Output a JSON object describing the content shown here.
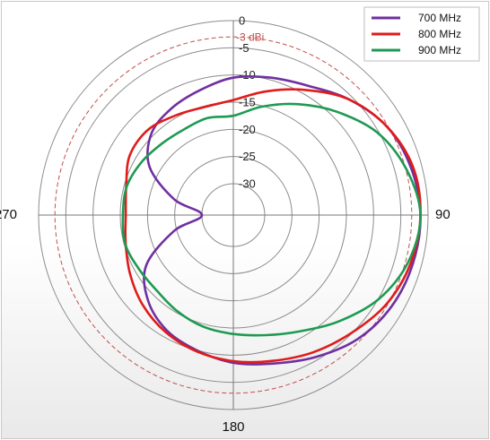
{
  "chart_data": {
    "type": "polar-line",
    "title": "",
    "radial_axis": {
      "min": -30,
      "max": 0,
      "step": 5,
      "tick_labels": [
        "0",
        "-5",
        "-10",
        "-15",
        "-20",
        "-25",
        "-30"
      ]
    },
    "angle_labels": [
      "0",
      "90",
      "180",
      "270"
    ],
    "angle_label_values": [
      0,
      90,
      180,
      270
    ],
    "reference_circle": {
      "value": -3,
      "label": "-3 dBi",
      "color": "#c0504d"
    },
    "legend": {
      "position": "top-right"
    },
    "angle_step_deg": 15,
    "series": [
      {
        "name": "700 MHz",
        "color": "#7030a0",
        "angles_deg": [
          0,
          15,
          30,
          45,
          60,
          75,
          90,
          105,
          120,
          135,
          150,
          165,
          180,
          195,
          210,
          225,
          240,
          255,
          270,
          285,
          300,
          315,
          330,
          345,
          360
        ],
        "values_db": [
          -10.5,
          -9.6,
          -8.3,
          -5.7,
          -3.2,
          -2.0,
          -1.4,
          -1.6,
          -2.2,
          -3.5,
          -5.6,
          -7.5,
          -8.6,
          -10.0,
          -11.3,
          -13.6,
          -17.3,
          -24.5,
          -30,
          -24.5,
          -18.0,
          -14.5,
          -13.1,
          -12.0,
          -10.5
        ]
      },
      {
        "name": "800 MHz",
        "color": "#e01b1b",
        "angles_deg": [
          0,
          15,
          30,
          45,
          60,
          75,
          90,
          105,
          120,
          135,
          150,
          165,
          180,
          195,
          210,
          225,
          240,
          255,
          270,
          285,
          300,
          315,
          330,
          345,
          360
        ],
        "values_db": [
          -14.6,
          -12.2,
          -9.2,
          -5.7,
          -3.2,
          -1.6,
          -1.4,
          -2.0,
          -3.2,
          -5.1,
          -6.6,
          -8.0,
          -8.9,
          -9.8,
          -10.9,
          -12.3,
          -13.9,
          -15.3,
          -16.0,
          -15.4,
          -13.8,
          -13.6,
          -14.6,
          -15.2,
          -14.6
        ]
      },
      {
        "name": "900 MHz",
        "color": "#1e9a52",
        "angles_deg": [
          0,
          15,
          30,
          45,
          60,
          75,
          90,
          105,
          120,
          135,
          150,
          165,
          180,
          195,
          210,
          225,
          240,
          255,
          270,
          285,
          300,
          315,
          330,
          345,
          360
        ],
        "values_db": [
          -17.5,
          -15.1,
          -12.2,
          -8.9,
          -5.3,
          -2.9,
          -1.4,
          -2.5,
          -4.9,
          -8.2,
          -11.1,
          -12.9,
          -13.9,
          -14.5,
          -15.3,
          -16.0,
          -15.8,
          -15.2,
          -15.5,
          -15.5,
          -16.3,
          -17.2,
          -17.6,
          -17.3,
          -17.5
        ]
      }
    ]
  }
}
